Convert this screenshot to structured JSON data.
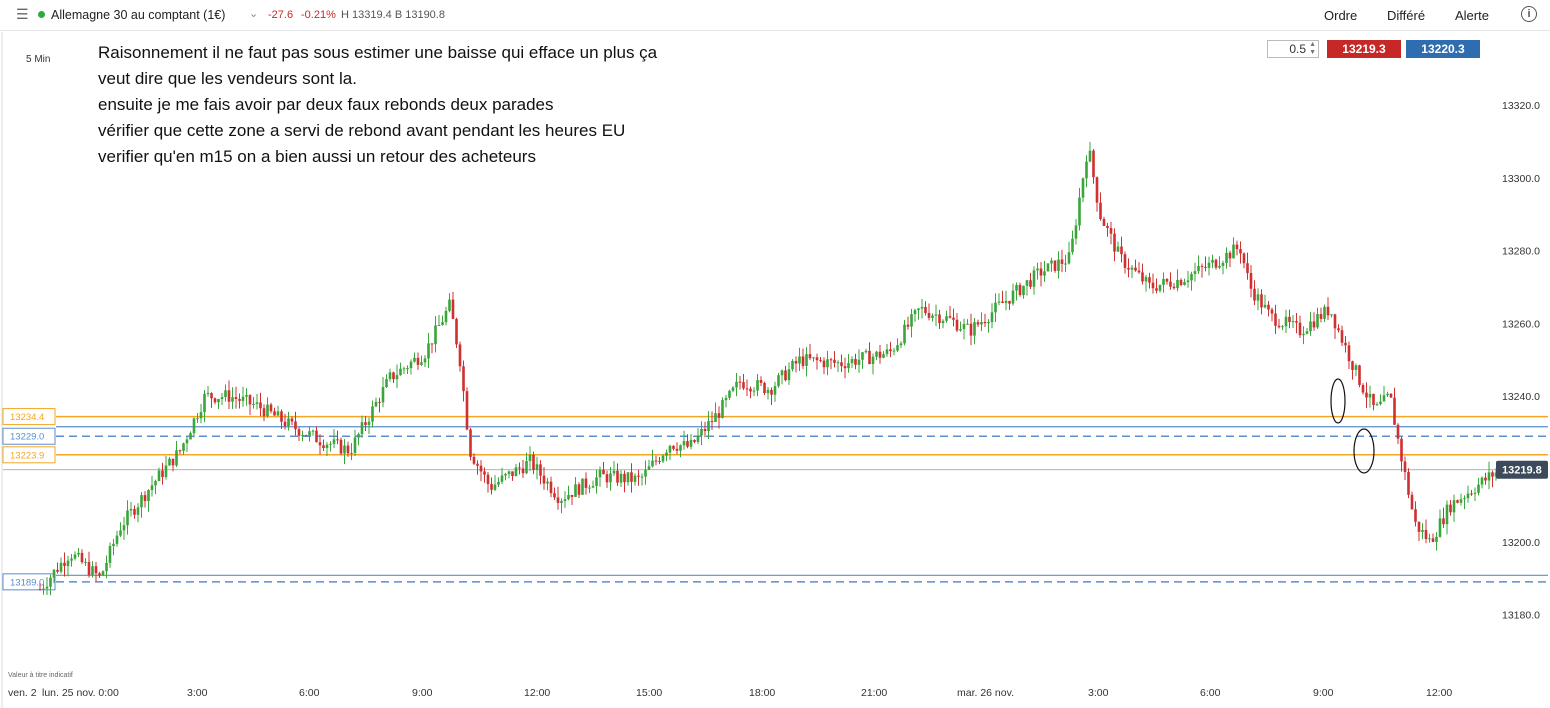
{
  "header": {
    "instrument": "Allemagne 30 au comptant (1€)",
    "change": "-27.6",
    "change_pct": "-0.21%",
    "high_low": "H 13319.4 B 13190.8",
    "buttons": {
      "order": "Ordre",
      "deferred": "Différé",
      "alert": "Alerte"
    },
    "icons": {
      "menu": "hamburger-icon",
      "status": "status-dot-icon",
      "dropdown": "chevron-down-icon",
      "info": "info-icon"
    },
    "status_color": "#2eaa3f"
  },
  "chart": {
    "timeframe": "5 Min",
    "note_lines": [
      "Raisonnement il ne faut pas sous estimer une baisse qui efface un plus ça",
      "veut dire que les vendeurs sont la.",
      "ensuite je me fais avoir par deux faux rebonds deux parades",
      "vérifier que cette zone a servi de rebond avant pendant les heures EU",
      "verifier qu'en m15 on a bien aussi un retour des acheteurs"
    ],
    "quantity": "0.5",
    "sell_price": "13219.3",
    "buy_price": "13220.3",
    "last_price": "13219.8",
    "disclaimer": "Valeur à titre indicatif",
    "colors": {
      "up": "#3aa53a",
      "down": "#d03030",
      "orange": "#f5a623",
      "blue": "#5a8fd0",
      "sell": "#c62828",
      "buy": "#2e6eb0"
    }
  },
  "chart_data": {
    "type": "candlestick",
    "y_ticks": [
      13320.0,
      13300.0,
      13280.0,
      13260.0,
      13240.0,
      13200.0,
      13180.0
    ],
    "y_tick_labels": [
      "13320.0",
      "13300.0",
      "13280.0",
      "13260.0",
      "13240.0",
      "13200.0",
      "13180.0"
    ],
    "x_labels": [
      "ven. 2",
      "lun. 25 nov. 0:00",
      "3:00",
      "6:00",
      "9:00",
      "12:00",
      "15:00",
      "18:00",
      "21:00",
      "mar. 26 nov.",
      "3:00",
      "6:00",
      "9:00",
      "12:00"
    ],
    "levels": [
      {
        "value": 13234.4,
        "label": "13234.4",
        "style": "solid",
        "color": "orange"
      },
      {
        "value": 13229.0,
        "label": "13229.0",
        "style": "dashed",
        "color": "blue"
      },
      {
        "value": 13223.9,
        "label": "13223.9",
        "style": "solid",
        "color": "orange"
      },
      {
        "value": 13189.0,
        "label": "13189.0",
        "style": "dashed",
        "color": "blue"
      }
    ],
    "last_price": 13219.8,
    "path_points": [
      [
        0,
        13187
      ],
      [
        0.03,
        13197
      ],
      [
        0.06,
        13190
      ],
      [
        0.08,
        13204
      ],
      [
        0.11,
        13215
      ],
      [
        0.14,
        13225
      ],
      [
        0.165,
        13240
      ],
      [
        0.19,
        13240
      ],
      [
        0.22,
        13237
      ],
      [
        0.25,
        13232
      ],
      [
        0.28,
        13228
      ],
      [
        0.31,
        13225
      ],
      [
        0.35,
        13245
      ],
      [
        0.385,
        13252
      ],
      [
        0.41,
        13265
      ],
      [
        0.42,
        13250
      ],
      [
        0.43,
        13225
      ],
      [
        0.45,
        13215
      ],
      [
        0.49,
        13222
      ],
      [
        0.52,
        13212
      ],
      [
        0.56,
        13218
      ],
      [
        0.6,
        13217
      ],
      [
        0.63,
        13227
      ],
      [
        0.65,
        13226
      ],
      [
        0.68,
        13236
      ],
      [
        0.7,
        13244
      ],
      [
        0.73,
        13242
      ],
      [
        0.76,
        13250
      ],
      [
        0.8,
        13249
      ],
      [
        0.85,
        13252
      ],
      [
        0.88,
        13264
      ],
      [
        0.91,
        13261
      ],
      [
        0.93,
        13258
      ],
      [
        0.96,
        13265
      ],
      [
        1.0,
        13274
      ],
      [
        1.03,
        13278
      ],
      [
        1.048,
        13309
      ],
      [
        1.06,
        13290
      ],
      [
        1.08,
        13278
      ],
      [
        1.11,
        13270
      ],
      [
        1.14,
        13272
      ],
      [
        1.17,
        13276
      ],
      [
        1.2,
        13281
      ],
      [
        1.21,
        13270
      ],
      [
        1.23,
        13262
      ],
      [
        1.26,
        13258
      ],
      [
        1.29,
        13264
      ],
      [
        1.3,
        13257
      ],
      [
        1.32,
        13244
      ],
      [
        1.335,
        13236
      ],
      [
        1.35,
        13240
      ],
      [
        1.36,
        13225
      ],
      [
        1.375,
        13205
      ],
      [
        1.39,
        13200
      ],
      [
        1.4,
        13205
      ],
      [
        1.41,
        13210
      ],
      [
        1.43,
        13214
      ],
      [
        1.45,
        13218
      ],
      [
        1.46,
        13219.8
      ]
    ]
  }
}
